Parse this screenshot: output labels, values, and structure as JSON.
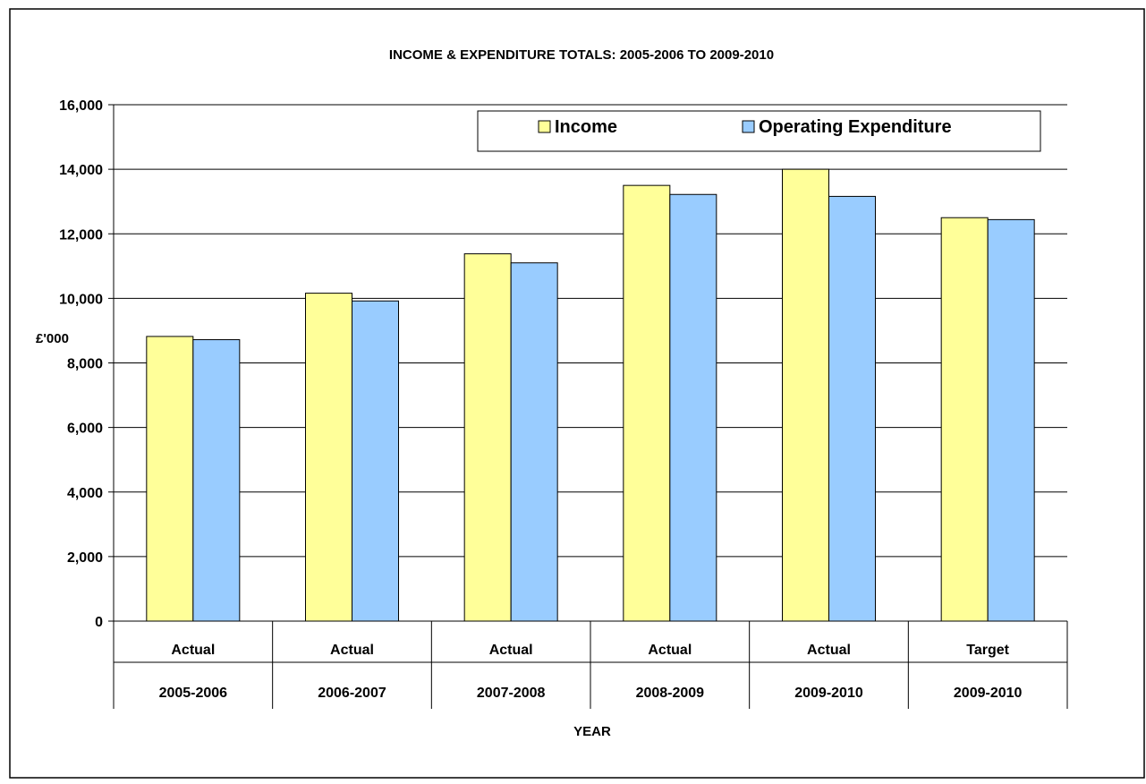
{
  "chart_data": {
    "type": "bar",
    "title": "INCOME & EXPENDITURE TOTALS: 2005-2006 TO 2009-2010",
    "xlabel": "YEAR",
    "ylabel": "£'000",
    "ylim": [
      0,
      16000
    ],
    "yticks": [
      0,
      2000,
      4000,
      6000,
      8000,
      10000,
      12000,
      14000,
      16000
    ],
    "ytick_labels": [
      "0",
      "2,000",
      "4,000",
      "6,000",
      "8,000",
      "10,000",
      "12,000",
      "14,000",
      "16,000"
    ],
    "grid": true,
    "legend_position": "top-right",
    "categories": [
      {
        "line1": "Actual",
        "line2": "2005-2006"
      },
      {
        "line1": "Actual",
        "line2": "2006-2007"
      },
      {
        "line1": "Actual",
        "line2": "2007-2008"
      },
      {
        "line1": "Actual",
        "line2": "2008-2009"
      },
      {
        "line1": "Actual",
        "line2": "2009-2010"
      },
      {
        "line1": "Target",
        "line2": "2009-2010"
      }
    ],
    "series": [
      {
        "name": "Income",
        "color": "#FFFF99",
        "values": [
          8820,
          10160,
          11380,
          13500,
          14000,
          12500
        ]
      },
      {
        "name": "Operating Expenditure",
        "color": "#99CCFF",
        "values": [
          8720,
          9920,
          11100,
          13220,
          13160,
          12440
        ]
      }
    ]
  }
}
